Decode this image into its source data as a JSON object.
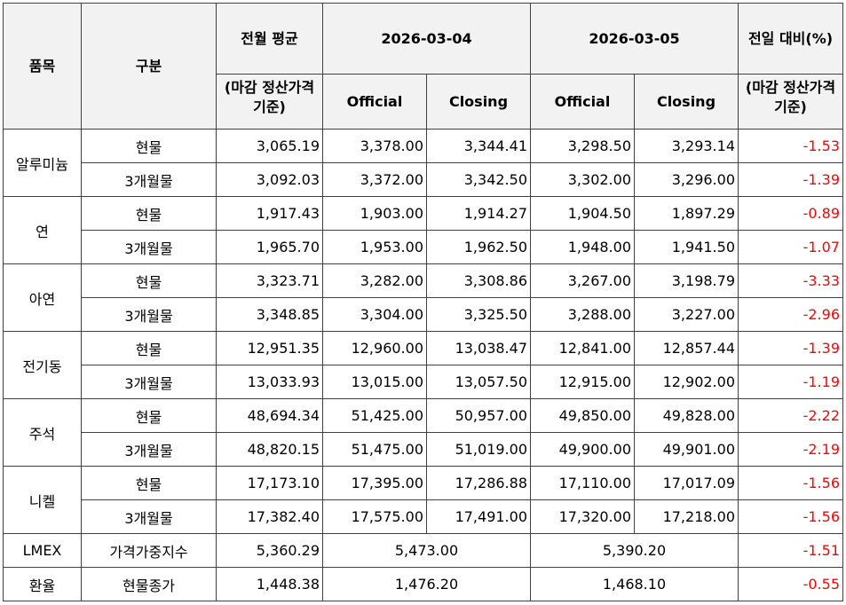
{
  "headers": {
    "item": "품목",
    "type": "구분",
    "prev_avg": "전월 평균",
    "prev_avg_sub": "(마감 정산가격 기준)",
    "date1": "2026-03-04",
    "date2": "2026-03-05",
    "official": "Official",
    "closing": "Closing",
    "daily_change": "전일 대비(%)",
    "daily_change_sub": "(마감 정산가격 기준)"
  },
  "metals": [
    {
      "name": "알루미늄",
      "rows": [
        {
          "type": "현물",
          "avg": "3,065.19",
          "d1_official": "3,378.00",
          "d1_closing": "3,344.41",
          "d2_official": "3,298.50",
          "d2_closing": "3,293.14",
          "change": "-1.53"
        },
        {
          "type": "3개월물",
          "avg": "3,092.03",
          "d1_official": "3,372.00",
          "d1_closing": "3,342.50",
          "d2_official": "3,302.00",
          "d2_closing": "3,296.00",
          "change": "-1.39"
        }
      ]
    },
    {
      "name": "연",
      "rows": [
        {
          "type": "현물",
          "avg": "1,917.43",
          "d1_official": "1,903.00",
          "d1_closing": "1,914.27",
          "d2_official": "1,904.50",
          "d2_closing": "1,897.29",
          "change": "-0.89"
        },
        {
          "type": "3개월물",
          "avg": "1,965.70",
          "d1_official": "1,953.00",
          "d1_closing": "1,962.50",
          "d2_official": "1,948.00",
          "d2_closing": "1,941.50",
          "change": "-1.07"
        }
      ]
    },
    {
      "name": "아연",
      "rows": [
        {
          "type": "현물",
          "avg": "3,323.71",
          "d1_official": "3,282.00",
          "d1_closing": "3,308.86",
          "d2_official": "3,267.00",
          "d2_closing": "3,198.79",
          "change": "-3.33"
        },
        {
          "type": "3개월물",
          "avg": "3,348.85",
          "d1_official": "3,304.00",
          "d1_closing": "3,325.50",
          "d2_official": "3,288.00",
          "d2_closing": "3,227.00",
          "change": "-2.96"
        }
      ]
    },
    {
      "name": "전기동",
      "rows": [
        {
          "type": "현물",
          "avg": "12,951.35",
          "d1_official": "12,960.00",
          "d1_closing": "13,038.47",
          "d2_official": "12,841.00",
          "d2_closing": "12,857.44",
          "change": "-1.39"
        },
        {
          "type": "3개월물",
          "avg": "13,033.93",
          "d1_official": "13,015.00",
          "d1_closing": "13,057.50",
          "d2_official": "12,915.00",
          "d2_closing": "12,902.00",
          "change": "-1.19"
        }
      ]
    },
    {
      "name": "주석",
      "rows": [
        {
          "type": "현물",
          "avg": "48,694.34",
          "d1_official": "51,425.00",
          "d1_closing": "50,957.00",
          "d2_official": "49,850.00",
          "d2_closing": "49,828.00",
          "change": "-2.22"
        },
        {
          "type": "3개월물",
          "avg": "48,820.15",
          "d1_official": "51,475.00",
          "d1_closing": "51,019.00",
          "d2_official": "49,900.00",
          "d2_closing": "49,901.00",
          "change": "-2.19"
        }
      ]
    },
    {
      "name": "니켈",
      "rows": [
        {
          "type": "현물",
          "avg": "17,173.10",
          "d1_official": "17,395.00",
          "d1_closing": "17,286.88",
          "d2_official": "17,110.00",
          "d2_closing": "17,017.09",
          "change": "-1.56"
        },
        {
          "type": "3개월물",
          "avg": "17,382.40",
          "d1_official": "17,575.00",
          "d1_closing": "17,491.00",
          "d2_official": "17,320.00",
          "d2_closing": "17,218.00",
          "change": "-1.56"
        }
      ]
    }
  ],
  "summary": [
    {
      "name": "LMEX",
      "type": "가격가중지수",
      "avg": "5,360.29",
      "d1": "5,473.00",
      "d2": "5,390.20",
      "change": "-1.51"
    },
    {
      "name": "환율",
      "type": "현물종가",
      "avg": "1,448.38",
      "d1": "1,476.20",
      "d2": "1,468.10",
      "change": "-0.55"
    }
  ]
}
